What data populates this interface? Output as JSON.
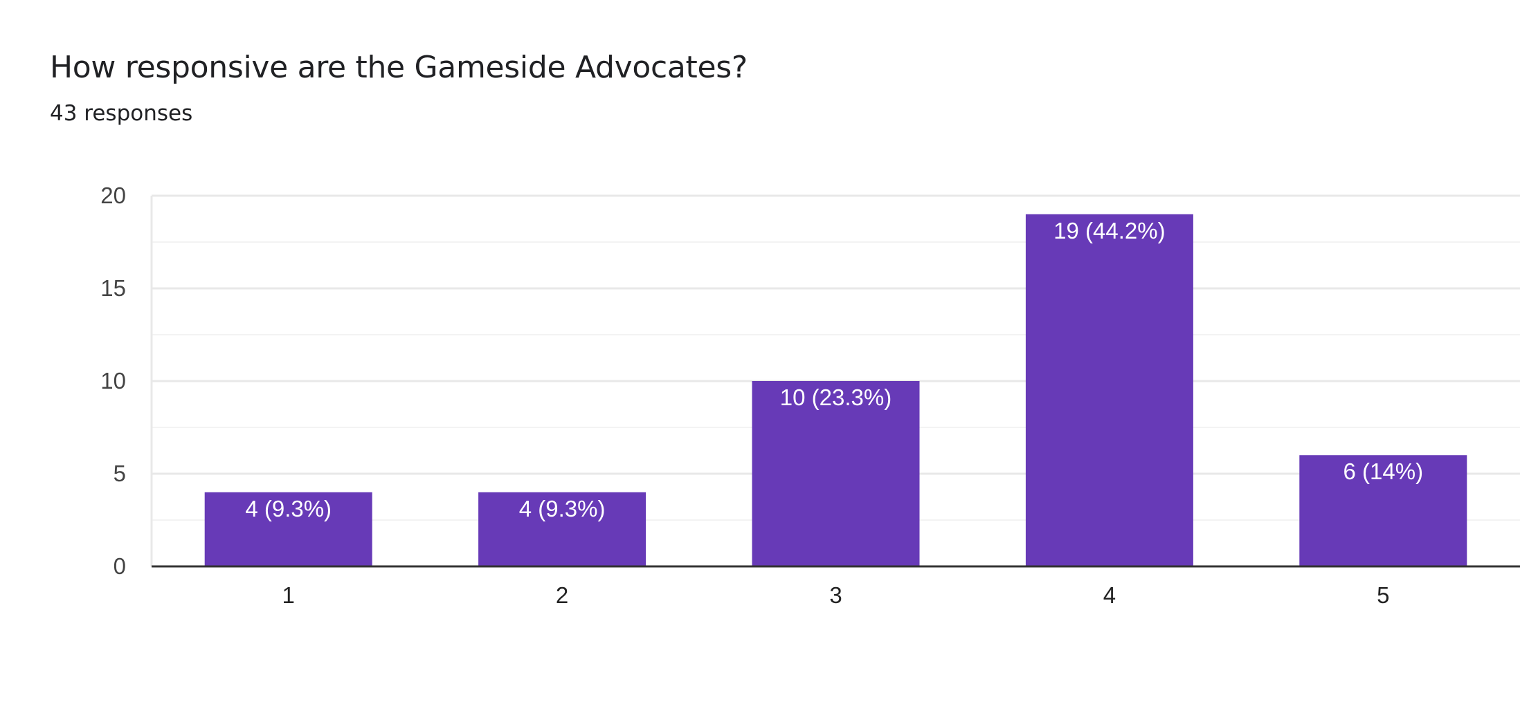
{
  "question": {
    "title": "How responsive are the Gameside Advocates?",
    "responses": "43 responses"
  },
  "colors": {
    "bar": "#673ab7",
    "grid_major": "#e8e8e8",
    "grid_minor": "#f3f3f3",
    "baseline": "#333333"
  },
  "chart_data": {
    "type": "bar",
    "categories": [
      "1",
      "2",
      "3",
      "4",
      "5"
    ],
    "values": [
      4,
      4,
      10,
      19,
      6
    ],
    "data_labels": [
      "4 (9.3%)",
      "4 (9.3%)",
      "10 (23.3%)",
      "19 (44.2%)",
      "6 (14%)"
    ],
    "yticks": [
      0,
      5,
      10,
      15,
      20
    ],
    "ylim": [
      0,
      20
    ],
    "grid": true,
    "legend": "none"
  }
}
